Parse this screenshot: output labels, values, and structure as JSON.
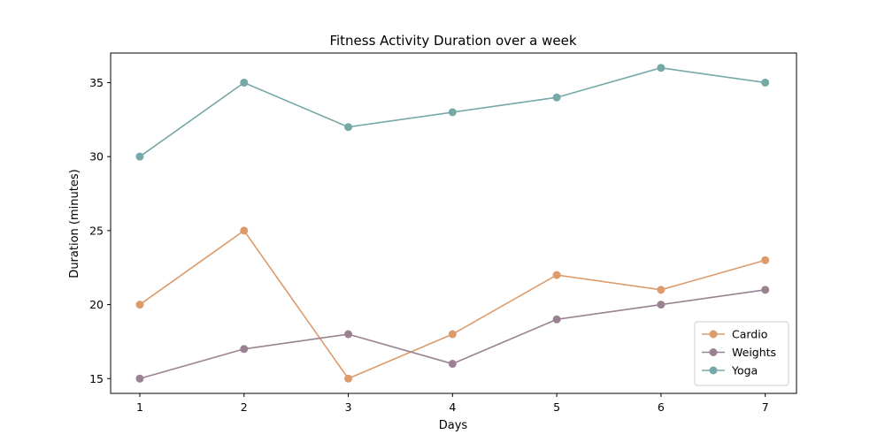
{
  "chart_data": {
    "type": "line",
    "title": "Fitness Activity Duration over a week",
    "xlabel": "Days",
    "ylabel": "Duration (minutes)",
    "x": [
      1,
      2,
      3,
      4,
      5,
      6,
      7
    ],
    "xlim": [
      0.72,
      7.3
    ],
    "ylim": [
      14,
      37
    ],
    "yticks": [
      15,
      20,
      25,
      30,
      35
    ],
    "grid": false,
    "legend_position": "bottom-right",
    "series": [
      {
        "name": "Cardio",
        "color": "#dd9b6b",
        "values": [
          20,
          25,
          15,
          18,
          22,
          21,
          23
        ]
      },
      {
        "name": "Weights",
        "color": "#9a8292",
        "values": [
          15,
          17,
          18,
          16,
          19,
          20,
          21
        ]
      },
      {
        "name": "Yoga",
        "color": "#76a8a8",
        "values": [
          30,
          35,
          32,
          33,
          34,
          36,
          35
        ]
      }
    ]
  }
}
